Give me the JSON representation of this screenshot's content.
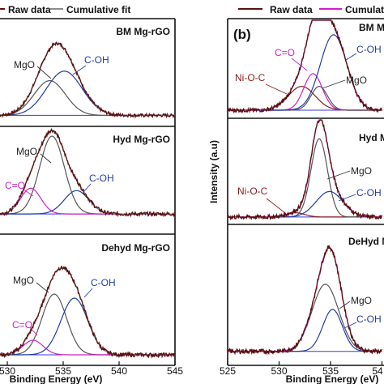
{
  "chart_data": [
    {
      "type": "line",
      "panel": "left",
      "legend": [
        {
          "name": "Raw data",
          "color": "#5a1010"
        },
        {
          "name": "Cumulative fit",
          "color": "#8c8c8c"
        }
      ],
      "xlabel": "Binding Energy (eV)",
      "xlim": [
        528,
        545
      ],
      "xticks": [
        530,
        535,
        540,
        545
      ],
      "subplots": [
        {
          "title": "BM Mg-rGO",
          "components": [
            {
              "name": "MgO",
              "center": 533.8,
              "amplitude": 0.55,
              "width": 1.4,
              "color": "#555555"
            },
            {
              "name": "C-OH",
              "center": 535.1,
              "amplitude": 0.7,
              "width": 1.6,
              "color": "#1f3ea8"
            }
          ],
          "annotations": [
            {
              "text": "MgO",
              "color": "#222222"
            },
            {
              "text": "C-OH",
              "color": "#1f3ea8"
            }
          ]
        },
        {
          "title": "Hyd Mg-rGO",
          "components": [
            {
              "name": "MgO",
              "center": 534.0,
              "amplitude": 1.0,
              "width": 1.1,
              "color": "#555555"
            },
            {
              "name": "C=O",
              "center": 532.1,
              "amplitude": 0.33,
              "width": 0.9,
              "color": "#d21ec8"
            },
            {
              "name": "C-OH",
              "center": 536.2,
              "amplitude": 0.3,
              "width": 1.1,
              "color": "#1f3ea8"
            }
          ],
          "annotations": [
            {
              "text": "MgO",
              "color": "#222222"
            },
            {
              "text": "C=O",
              "color": "#d21ec8"
            },
            {
              "text": "C-OH",
              "color": "#1f3ea8"
            }
          ]
        },
        {
          "title": "Dehyd Mg-rGO",
          "components": [
            {
              "name": "MgO",
              "center": 534.2,
              "amplitude": 0.75,
              "width": 1.1,
              "color": "#555555"
            },
            {
              "name": "C=O",
              "center": 532.3,
              "amplitude": 0.18,
              "width": 0.9,
              "color": "#d21ec8"
            },
            {
              "name": "C-OH",
              "center": 536.0,
              "amplitude": 0.7,
              "width": 1.2,
              "color": "#1f3ea8"
            }
          ],
          "annotations": [
            {
              "text": "MgO",
              "color": "#222222"
            },
            {
              "text": "C=O",
              "color": "#d21ec8"
            },
            {
              "text": "C-OH",
              "color": "#1f3ea8"
            }
          ]
        }
      ]
    },
    {
      "type": "line",
      "panel": "right",
      "panel_label": "(b)",
      "legend": [
        {
          "name": "Raw data",
          "color": "#5a1010"
        },
        {
          "name": "Cumulati",
          "color": "#d21ec8"
        }
      ],
      "ylabel": "Intensity (a.u)",
      "xlabel": "Binding Energy (eV)",
      "xlim": [
        525,
        540
      ],
      "xticks": [
        525,
        530,
        535,
        "54"
      ],
      "subplots": [
        {
          "title": "BM M",
          "components": [
            {
              "name": "Ni-O-C",
              "center": 532.2,
              "amplitude": 0.3,
              "width": 1.3,
              "color": "#8b1a1a"
            },
            {
              "name": "C=O",
              "center": 533.3,
              "amplitude": 0.46,
              "width": 0.9,
              "color": "#d21ec8"
            },
            {
              "name": "MgO",
              "center": 533.9,
              "amplitude": 0.3,
              "width": 0.8,
              "color": "#555555"
            },
            {
              "name": "C-OH",
              "center": 535.3,
              "amplitude": 0.95,
              "width": 1.3,
              "color": "#1f3ea8"
            }
          ],
          "annotations": [
            {
              "text": "C=O",
              "color": "#d21ec8"
            },
            {
              "text": "Ni-O-C",
              "color": "#8b1a1a"
            },
            {
              "text": "MgO",
              "color": "#222222"
            },
            {
              "text": "C-OH",
              "color": "#1f3ea8"
            }
          ]
        },
        {
          "title": "Hyd M",
          "components": [
            {
              "name": "Ni-O-C",
              "center": 531.6,
              "amplitude": 0.05,
              "width": 0.9,
              "color": "#8b1a1a"
            },
            {
              "name": "MgO",
              "center": 533.9,
              "amplitude": 0.92,
              "width": 0.8,
              "color": "#555555"
            },
            {
              "name": "C-OH",
              "center": 534.9,
              "amplitude": 0.3,
              "width": 1.3,
              "color": "#1f3ea8"
            }
          ],
          "annotations": [
            {
              "text": "MgO",
              "color": "#222222"
            },
            {
              "text": "Ni-O-C",
              "color": "#8b1a1a"
            },
            {
              "text": "C-OH",
              "color": "#1f3ea8"
            }
          ]
        },
        {
          "title": "DeHyd M",
          "components": [
            {
              "name": "MgO",
              "center": 534.5,
              "amplitude": 0.72,
              "width": 1.3,
              "color": "#555555"
            },
            {
              "name": "C-OH",
              "center": 535.2,
              "amplitude": 0.45,
              "width": 0.95,
              "color": "#1f3ea8"
            }
          ],
          "annotations": [
            {
              "text": "MgO",
              "color": "#222222"
            },
            {
              "text": "C-OH",
              "color": "#1f3ea8"
            }
          ]
        }
      ]
    }
  ]
}
